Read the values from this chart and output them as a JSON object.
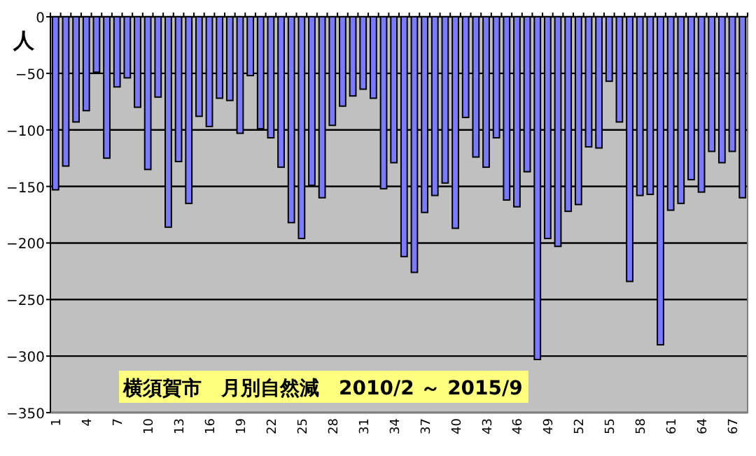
{
  "chart_data": {
    "type": "bar",
    "title": "横須賀市　月別自然減　2010/2 ～ 2015/9",
    "ylabel": "人",
    "categories": [
      "1",
      null,
      null,
      "4",
      null,
      null,
      "7",
      null,
      null,
      "10",
      null,
      null,
      "13",
      null,
      null,
      "16",
      null,
      null,
      "19",
      null,
      null,
      "22",
      null,
      null,
      "25",
      null,
      null,
      "28",
      null,
      null,
      "31",
      null,
      null,
      "34",
      null,
      null,
      "37",
      null,
      null,
      "40",
      null,
      null,
      "43",
      null,
      null,
      "46",
      null,
      null,
      "49",
      null,
      null,
      "52",
      null,
      null,
      "55",
      null,
      null,
      "58",
      null,
      null,
      "61",
      null,
      null,
      "64",
      null,
      null,
      "67",
      null
    ],
    "values": [
      -153,
      -132,
      -93,
      -83,
      -49,
      -125,
      -62,
      -54,
      -80,
      -135,
      -71,
      -186,
      -128,
      -165,
      -88,
      -97,
      -72,
      -74,
      -103,
      -52,
      -99,
      -107,
      -133,
      -182,
      -196,
      -149,
      -160,
      -96,
      -79,
      -70,
      -64,
      -72,
      -152,
      -129,
      -212,
      -226,
      -173,
      -158,
      -147,
      -187,
      -89,
      -124,
      -133,
      -107,
      -162,
      -168,
      -137,
      -303,
      -196,
      -203,
      -172,
      -166,
      -115,
      -116,
      -57,
      -93,
      -234,
      -158,
      -157,
      -290,
      -171,
      -165,
      -144,
      -155,
      -119,
      -129,
      -119,
      -160
    ],
    "color": "#7b7bff",
    "ylim": [
      -350,
      0
    ],
    "yticks": [
      -350,
      -300,
      -250,
      -200,
      -150,
      -100,
      -50,
      0
    ],
    "grid": "y"
  }
}
